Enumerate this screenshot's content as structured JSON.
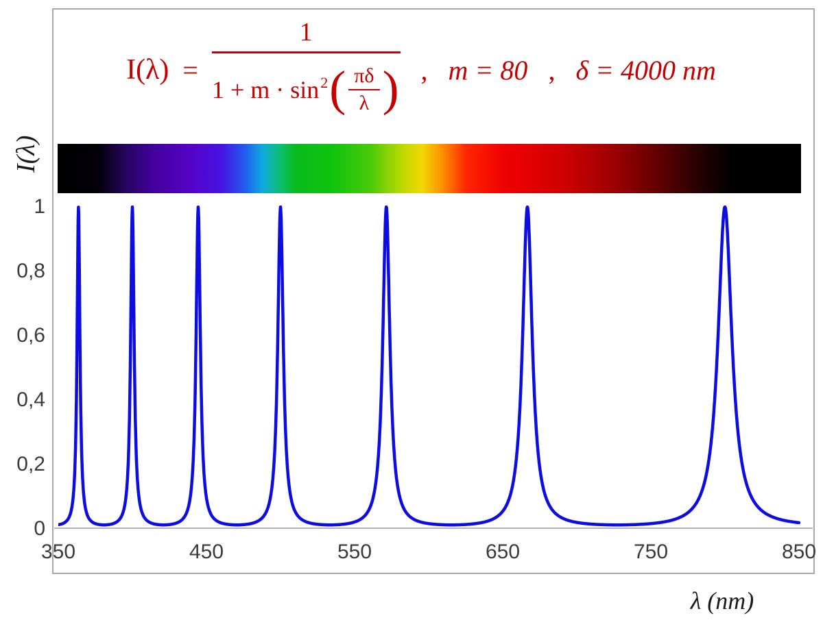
{
  "figure": {
    "y_axis_label": "I(λ)",
    "x_axis_label": "λ  (nm)",
    "formula": {
      "lhs": "I(λ)",
      "equals": "=",
      "numerator": "1",
      "denominator_prefix": "1 + m · sin",
      "denominator_sup": "2",
      "lparen": "(",
      "rparen": ")",
      "inner_numerator": "πδ",
      "inner_denominator": "λ",
      "separator": ",",
      "param_m": "m = 80",
      "separator2": ",",
      "param_delta": "δ = 4000 nm",
      "color": "#c40000"
    }
  },
  "chart_data": {
    "type": "line",
    "formula_text": "I(λ) = 1 / (1 + m·sin²(πδ/λ)) ,  m = 80 ,  δ = 4000 nm",
    "parameters": {
      "m": 80,
      "delta_nm": 4000
    },
    "x": {
      "label": "λ (nm)",
      "min": 350,
      "max": 850,
      "ticks": [
        {
          "label": "350",
          "value": 350
        },
        {
          "label": "450",
          "value": 450
        },
        {
          "label": "550",
          "value": 550
        },
        {
          "label": "650",
          "value": 650
        },
        {
          "label": "750",
          "value": 750
        },
        {
          "label": "850",
          "value": 850
        }
      ]
    },
    "y": {
      "label": "I(λ)",
      "min": 0,
      "max": 1,
      "ticks": [
        {
          "label": "1",
          "value": 1.0
        },
        {
          "label": "0,8",
          "value": 0.8
        },
        {
          "label": "0,6",
          "value": 0.6
        },
        {
          "label": "0,4",
          "value": 0.4
        },
        {
          "label": "0,2",
          "value": 0.2
        },
        {
          "label": "0",
          "value": 0.0
        }
      ]
    },
    "grid": false,
    "legend": false,
    "series": [
      {
        "name": "I(λ)",
        "color": "#0d0de0",
        "function": "I(λ) = 1 / (1 + m·sin²(π·δ/λ))",
        "m": 80,
        "delta_nm": 4000,
        "peak_wavelengths_nm": [
          363.64,
          400,
          444.44,
          500,
          571.43,
          666.67,
          800
        ],
        "peak_intensity": 1,
        "min_intensity": 0.0123
      }
    ],
    "spectrum_bar": {
      "description": "visible-light spectrum strip spanning 350–850 nm, black outside visible range",
      "gradient_stops": [
        {
          "pos": 0,
          "color": "#000000"
        },
        {
          "pos": 5.5,
          "color": "#030008"
        },
        {
          "pos": 9,
          "color": "#24055c"
        },
        {
          "pos": 13,
          "color": "#43009e"
        },
        {
          "pos": 18,
          "color": "#5503c8"
        },
        {
          "pos": 22,
          "color": "#4713e4"
        },
        {
          "pos": 25,
          "color": "#2356ee"
        },
        {
          "pos": 27.5,
          "color": "#0fa9e0"
        },
        {
          "pos": 30,
          "color": "#0cbf6e"
        },
        {
          "pos": 32,
          "color": "#09bb1d"
        },
        {
          "pos": 37,
          "color": "#10c30e"
        },
        {
          "pos": 42,
          "color": "#47ca0a"
        },
        {
          "pos": 46,
          "color": "#b4d800"
        },
        {
          "pos": 49,
          "color": "#f2d800"
        },
        {
          "pos": 52,
          "color": "#ff8800"
        },
        {
          "pos": 55,
          "color": "#ff2600"
        },
        {
          "pos": 60,
          "color": "#f10000"
        },
        {
          "pos": 68,
          "color": "#cf0000"
        },
        {
          "pos": 75,
          "color": "#9b0000"
        },
        {
          "pos": 82,
          "color": "#550000"
        },
        {
          "pos": 88,
          "color": "#150000"
        },
        {
          "pos": 91,
          "color": "#000000"
        },
        {
          "pos": 100,
          "color": "#000000"
        }
      ]
    }
  }
}
